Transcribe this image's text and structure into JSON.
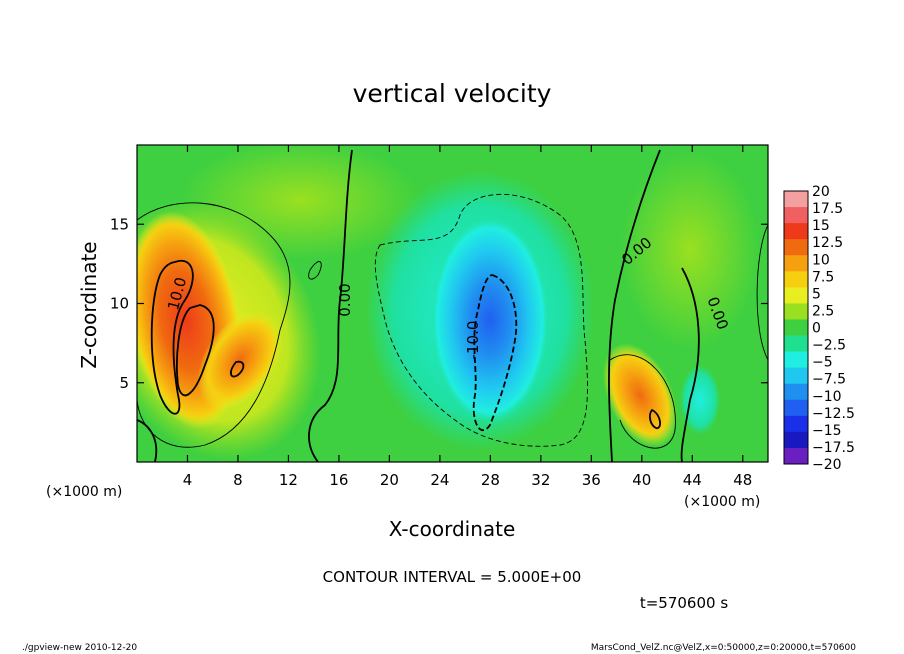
{
  "chart_data": {
    "type": "heatmap",
    "title": "vertical velocity",
    "xlabel": "X-coordinate",
    "ylabel": "Z-coordinate",
    "x_unit": "(×1000 m)",
    "z_unit": "(×1000 m)",
    "xlim": [
      0,
      50
    ],
    "zlim": [
      0,
      20
    ],
    "x_ticks": [
      "4",
      "8",
      "12",
      "16",
      "20",
      "24",
      "28",
      "32",
      "36",
      "40",
      "44",
      "48"
    ],
    "z_ticks": [
      "5",
      "10",
      "15"
    ],
    "colorbar": {
      "labels": [
        "20",
        "17.5",
        "15",
        "12.5",
        "10",
        "7.5",
        "5",
        "2.5",
        "0",
        "−2.5",
        "−5",
        "−7.5",
        "−10",
        "−12.5",
        "−15",
        "−17.5",
        "−20"
      ],
      "colors": [
        "#f4a0a0",
        "#f06060",
        "#ee3a1a",
        "#f06a10",
        "#f6a010",
        "#f6d010",
        "#e8ee20",
        "#9ae020",
        "#3ed040",
        "#20e090",
        "#20eee0",
        "#20c8f0",
        "#2090f0",
        "#2060f0",
        "#1a30e8",
        "#1a18c0",
        "#6a20c0"
      ]
    },
    "contour_labels": [
      "10.0",
      "0.00",
      "0.00",
      "0.00",
      "-10.0"
    ],
    "contour_interval_text": "CONTOUR INTERVAL = 5.000E+00",
    "time_text": "t=570600 s"
  },
  "footer": {
    "left": "./gpview-new   2010-12-20",
    "right": "MarsCond_VelZ.nc@VelZ,x=0:50000,z=0:20000,t=570600"
  },
  "colors": {
    "background_field": "#3ed040",
    "axis": "#000000"
  }
}
